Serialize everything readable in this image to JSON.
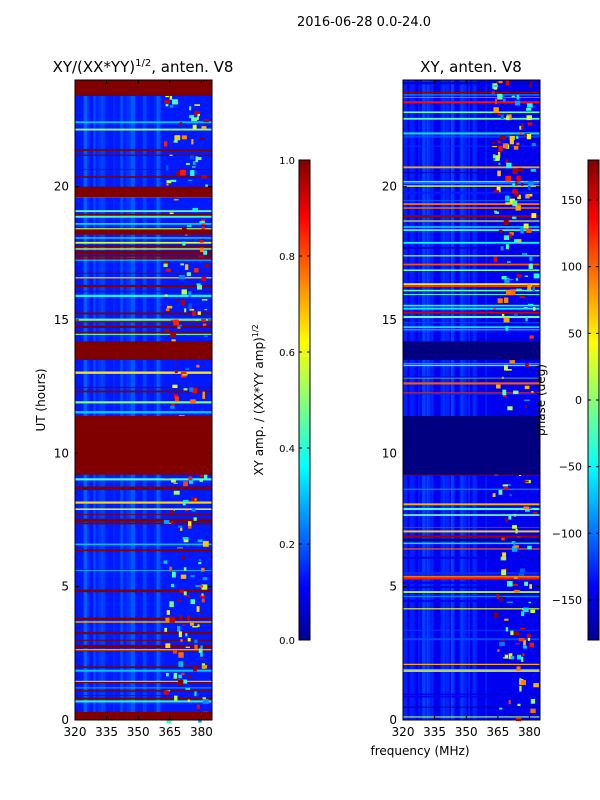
{
  "figure": {
    "suptitle": "2016-06-28 0.0-24.0",
    "xlabel_shared": "frequency (MHz)"
  },
  "colors": {
    "jet_dark_blue": "#00008f",
    "jet_blue": "#0000ff",
    "jet_cyan": "#00ffff",
    "jet_yellow": "#ffff00",
    "jet_red": "#ff0000",
    "jet_dark_red": "#800000"
  },
  "chart_data": [
    {
      "type": "heatmap",
      "id": "amplitude",
      "title_main": "XY/(XX*YY)",
      "title_sup": "1/2",
      "title_rest": ", anten. V8",
      "xlabel": "",
      "ylabel": "UT (hours)",
      "xlim": [
        320,
        385
      ],
      "ylim": [
        0,
        24
      ],
      "xticks": [
        320,
        335,
        350,
        365,
        380
      ],
      "yticks": [
        0,
        5,
        10,
        15,
        20
      ],
      "colormap": "jet",
      "colorbar": {
        "label_main": "XY amp. / (XX*YY amp)",
        "label_sup": "1/2",
        "range": [
          0.0,
          1.0
        ],
        "ticks": [
          0.0,
          0.2,
          0.4,
          0.6,
          0.8,
          1.0
        ],
        "tick_labels": [
          "0.0",
          "0.2",
          "0.4",
          "0.6",
          "0.8",
          "1.0"
        ]
      },
      "background_value": 0.15,
      "saturated_hour_bands": [
        {
          "from": 9.2,
          "to": 11.4,
          "value": 1.0
        },
        {
          "from": 13.5,
          "to": 14.2,
          "value": 1.0
        },
        {
          "from": 23.4,
          "to": 24.0,
          "value": 1.0
        },
        {
          "from": 19.6,
          "to": 20.0,
          "value": 1.0
        },
        {
          "from": 18.2,
          "to": 18.4,
          "value": 1.0
        },
        {
          "from": 0.0,
          "to": 0.3,
          "value": 1.0
        }
      ],
      "rfi_freq_range_mhz": [
        362,
        382
      ]
    },
    {
      "type": "heatmap",
      "id": "phase",
      "title": "XY, anten. V8",
      "xlabel": "frequency (MHz)",
      "ylabel": "",
      "xlim": [
        320,
        385
      ],
      "ylim": [
        0,
        24
      ],
      "xticks": [
        320,
        335,
        350,
        365,
        380
      ],
      "yticks": [
        0,
        5,
        10,
        15,
        20
      ],
      "colormap": "jet",
      "colorbar": {
        "label": "phase (deg)",
        "range": [
          -180,
          180
        ],
        "ticks": [
          -150,
          -100,
          -50,
          0,
          50,
          100,
          150
        ],
        "tick_labels": [
          "−150",
          "−100",
          "−50",
          "0",
          "50",
          "100",
          "150"
        ]
      },
      "background_value": -140,
      "low_hour_bands": [
        {
          "from": 9.2,
          "to": 11.4,
          "value": -180
        },
        {
          "from": 13.5,
          "to": 14.2,
          "value": -180
        }
      ],
      "rfi_freq_range_mhz": [
        362,
        382
      ]
    }
  ]
}
